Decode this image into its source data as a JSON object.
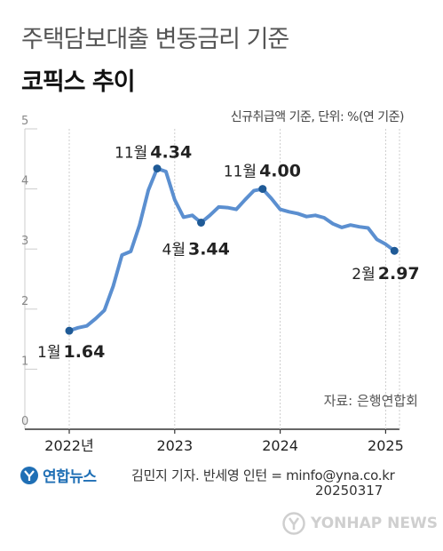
{
  "header": {
    "title_line1": "주택담보대출 변동금리 기준",
    "title_line2": "코픽스 추이",
    "unit_note": "신규취급액 기준, 단위: %(연 기준)"
  },
  "source_note": "자료: 은행연합회",
  "footer": {
    "logo_text": "연합뉴스",
    "credit": "김민지 기자. 반세영 인턴 = minfo@yna.co.kr",
    "date_code": "20250317",
    "watermark": "YONHAP NEWS"
  },
  "colors": {
    "line": "#5b8fd0",
    "marker": "#1f5a96",
    "grid": "#cccccc",
    "axis": "#333333"
  },
  "chart_data": {
    "type": "line",
    "title": "코픽스 추이",
    "ylabel": "",
    "xlabel": "",
    "ylim": [
      0,
      5
    ],
    "y_ticks": [
      "0",
      "1",
      "2",
      "3",
      "4",
      "5"
    ],
    "x_tick_labels": [
      "2022년",
      "2023",
      "2024",
      "2025"
    ],
    "x": [
      "2022-01",
      "2022-02",
      "2022-03",
      "2022-04",
      "2022-05",
      "2022-06",
      "2022-07",
      "2022-08",
      "2022-09",
      "2022-10",
      "2022-11",
      "2022-12",
      "2023-01",
      "2023-02",
      "2023-03",
      "2023-04",
      "2023-05",
      "2023-06",
      "2023-07",
      "2023-08",
      "2023-09",
      "2023-10",
      "2023-11",
      "2023-12",
      "2024-01",
      "2024-02",
      "2024-03",
      "2024-04",
      "2024-05",
      "2024-06",
      "2024-07",
      "2024-08",
      "2024-09",
      "2024-10",
      "2024-11",
      "2024-12",
      "2025-01",
      "2025-02"
    ],
    "series": [
      {
        "values": [
          1.64,
          1.69,
          1.72,
          1.84,
          1.98,
          2.38,
          2.9,
          2.96,
          3.4,
          3.98,
          4.34,
          4.29,
          3.82,
          3.53,
          3.56,
          3.44,
          3.56,
          3.7,
          3.69,
          3.66,
          3.82,
          3.97,
          4.0,
          3.84,
          3.66,
          3.62,
          3.59,
          3.54,
          3.56,
          3.52,
          3.42,
          3.36,
          3.4,
          3.37,
          3.35,
          3.16,
          3.08,
          2.97
        ]
      }
    ],
    "annotations": [
      {
        "index": 0,
        "month": "1월",
        "value": "1.64"
      },
      {
        "index": 10,
        "month": "11월",
        "value": "4.34"
      },
      {
        "index": 15,
        "month": "4월",
        "value": "3.44"
      },
      {
        "index": 22,
        "month": "11월",
        "value": "4.00"
      },
      {
        "index": 37,
        "month": "2월",
        "value": "2.97"
      }
    ]
  }
}
